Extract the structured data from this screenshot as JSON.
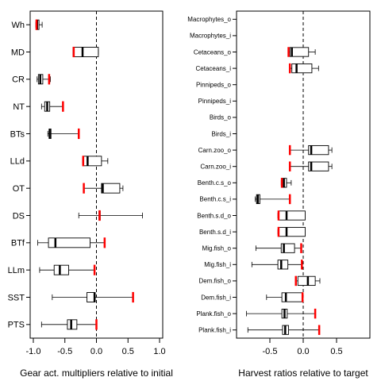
{
  "colors": {
    "box": "#000000",
    "initial": "#ff0000",
    "axis": "#000000",
    "background": "#ffffff"
  },
  "chart_data": [
    {
      "type": "boxplot",
      "orientation": "horizontal",
      "xlabel": "Gear act. multipliers relative to initial",
      "xlim": [
        -1.05,
        1.05
      ],
      "xticks": [
        -1.0,
        -0.5,
        0.0,
        0.5,
        1.0
      ],
      "xtick_labels": [
        "-1.0",
        "-0.5",
        "0.0",
        "0.5",
        "1.0"
      ],
      "reference_line": 0,
      "items": [
        {
          "label": "Wh",
          "min": -0.96,
          "q1": -0.95,
          "median": -0.94,
          "q3": -0.91,
          "max": -0.86,
          "initial": -0.95
        },
        {
          "label": "MD",
          "min": -0.37,
          "q1": -0.37,
          "median": -0.22,
          "q3": 0.03,
          "max": 0.03,
          "initial": -0.36
        },
        {
          "label": "CR",
          "min": -0.94,
          "q1": -0.92,
          "median": -0.89,
          "q3": -0.85,
          "max": -0.73,
          "initial": -0.75
        },
        {
          "label": "NT",
          "min": -0.87,
          "q1": -0.82,
          "median": -0.78,
          "q3": -0.74,
          "max": -0.53,
          "initial": -0.53
        },
        {
          "label": "BTs",
          "min": -0.77,
          "q1": -0.75,
          "median": -0.74,
          "q3": -0.72,
          "max": -0.28,
          "initial": -0.28
        },
        {
          "label": "LLd",
          "min": -0.22,
          "q1": -0.21,
          "median": -0.14,
          "q3": 0.08,
          "max": 0.18,
          "initial": -0.21
        },
        {
          "label": "OT",
          "min": -0.2,
          "q1": 0.08,
          "median": 0.1,
          "q3": 0.37,
          "max": 0.42,
          "initial": -0.2
        },
        {
          "label": "DS",
          "min": -0.28,
          "q1": 0.05,
          "median": 0.05,
          "q3": 0.05,
          "max": 0.73,
          "initial": 0.05
        },
        {
          "label": "BTf",
          "min": -0.93,
          "q1": -0.76,
          "median": -0.65,
          "q3": -0.1,
          "max": 0.13,
          "initial": 0.13
        },
        {
          "label": "LLm",
          "min": -0.9,
          "q1": -0.67,
          "median": -0.58,
          "q3": -0.44,
          "max": -0.03,
          "initial": -0.03
        },
        {
          "label": "SST",
          "min": -0.7,
          "q1": -0.15,
          "median": -0.03,
          "q3": -0.02,
          "max": 0.58,
          "initial": 0.58
        },
        {
          "label": "PTS",
          "min": -0.87,
          "q1": -0.46,
          "median": -0.4,
          "q3": -0.31,
          "max": 0.0,
          "initial": 0.0
        }
      ]
    },
    {
      "type": "boxplot",
      "orientation": "horizontal",
      "xlabel": "Harvest ratios relative to target",
      "xlim": [
        -1.0,
        1.0
      ],
      "xticks": [
        -0.5,
        0.0,
        0.5
      ],
      "xtick_labels": [
        "-0.5",
        "0.0",
        "0.5"
      ],
      "reference_line": 0,
      "items": [
        {
          "label": "Macrophytes_o"
        },
        {
          "label": "Macrophytes_i"
        },
        {
          "label": "Cetaceans_o",
          "min": -0.22,
          "q1": -0.2,
          "median": -0.17,
          "q3": 0.08,
          "max": 0.18,
          "initial": -0.22
        },
        {
          "label": "Cetaceans_i",
          "min": -0.2,
          "q1": -0.17,
          "median": -0.1,
          "q3": 0.13,
          "max": 0.23,
          "initial": -0.2
        },
        {
          "label": "Pinnipeds_o"
        },
        {
          "label": "Pinnipeds_i"
        },
        {
          "label": "Birds_o"
        },
        {
          "label": "Birds_i"
        },
        {
          "label": "Carn.zoo_o",
          "min": -0.2,
          "q1": 0.08,
          "median": 0.12,
          "q3": 0.38,
          "max": 0.43,
          "initial": -0.2
        },
        {
          "label": "Carn.zoo_i",
          "min": -0.2,
          "q1": 0.08,
          "median": 0.12,
          "q3": 0.38,
          "max": 0.43,
          "initial": -0.2
        },
        {
          "label": "Benth.c.s_o",
          "min": -0.33,
          "q1": -0.32,
          "median": -0.29,
          "q3": -0.25,
          "max": -0.18,
          "initial": -0.32
        },
        {
          "label": "Benth.c.s_i",
          "min": -0.72,
          "q1": -0.7,
          "median": -0.68,
          "q3": -0.65,
          "max": -0.2,
          "initial": -0.2
        },
        {
          "label": "Benth.s.d_o",
          "min": -0.38,
          "q1": -0.37,
          "median": -0.25,
          "q3": 0.03,
          "max": 0.03,
          "initial": -0.37
        },
        {
          "label": "Benth.s.d_i",
          "min": -0.38,
          "q1": -0.37,
          "median": -0.25,
          "q3": 0.03,
          "max": 0.03,
          "initial": -0.37
        },
        {
          "label": "Mig.fish_o",
          "min": -0.71,
          "q1": -0.33,
          "median": -0.29,
          "q3": -0.13,
          "max": -0.03,
          "initial": -0.03
        },
        {
          "label": "Mig.fish_i",
          "min": -0.77,
          "q1": -0.38,
          "median": -0.33,
          "q3": -0.23,
          "max": -0.02,
          "initial": -0.02
        },
        {
          "label": "Dem.fish_o",
          "min": -0.12,
          "q1": -0.08,
          "median": 0.07,
          "q3": 0.18,
          "max": 0.25,
          "initial": -0.11
        },
        {
          "label": "Dem.fish_i",
          "min": -0.55,
          "q1": -0.32,
          "median": -0.26,
          "q3": -0.01,
          "max": -0.01,
          "initial": -0.01
        },
        {
          "label": "Plank.fish_o",
          "min": -0.85,
          "q1": -0.32,
          "median": -0.28,
          "q3": -0.24,
          "max": 0.18,
          "initial": 0.18
        },
        {
          "label": "Plank.fish_i",
          "min": -0.83,
          "q1": -0.31,
          "median": -0.27,
          "q3": -0.22,
          "max": 0.24,
          "initial": 0.24
        }
      ]
    }
  ]
}
